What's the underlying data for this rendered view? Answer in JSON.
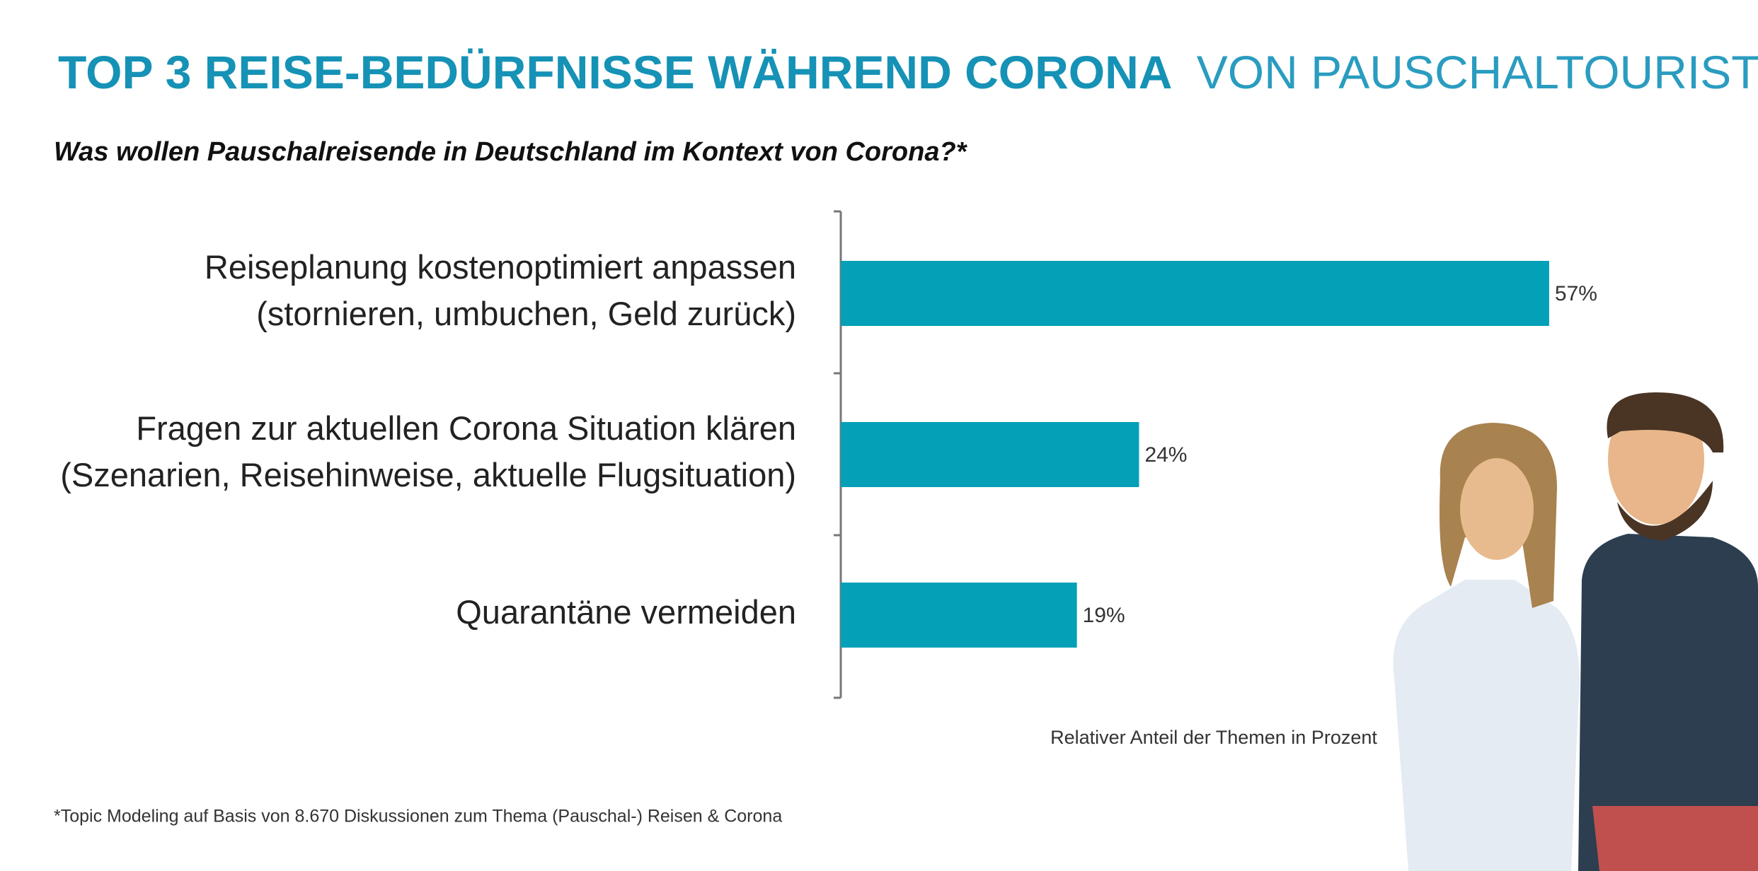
{
  "chart_data": {
    "type": "bar",
    "title": [
      "TOP 3 REISE-BEDÜRFNISSE WÄHREND CORONA",
      "VON PAUSCHALTOURISTEN"
    ],
    "subtitle": "Was wollen Pauschalreisende in Deutschland im Kontext von Corona?*",
    "categories": [
      [
        "Reiseplanung kostenoptimiert anpassen",
        "(stornieren, umbuchen, Geld zurück)"
      ],
      [
        "Fragen zur aktuellen Corona Situation klären",
        "(Szenarien, Reisehinweise, aktuelle Flugsituation)"
      ],
      [
        "Quarantäne vermeiden"
      ]
    ],
    "values": [
      57,
      24,
      19
    ],
    "value_labels": [
      "57%",
      "24%",
      "19%"
    ],
    "color": "#03a0b8",
    "xlim": [
      0,
      70
    ],
    "x_label": "Relativer Anteil der Themen in Prozent",
    "footnote": "*Topic Modeling auf Basis von 8.670 Diskussionen zum Thema (Pauschal-) Reisen & Corona"
  }
}
